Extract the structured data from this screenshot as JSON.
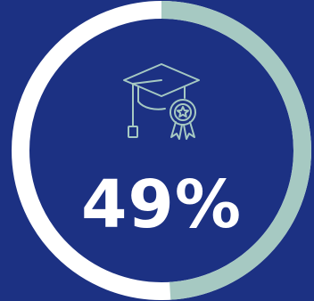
{
  "stat": {
    "value_text": "49%",
    "progress_fraction": 0.49,
    "icon": "graduation-cap-with-award-icon"
  },
  "colors": {
    "background": "#1c3183",
    "ring_filled": "#a6c9c2",
    "ring_track": "#ffffff",
    "text": "#ffffff",
    "icon_stroke": "#a6c9c2"
  }
}
